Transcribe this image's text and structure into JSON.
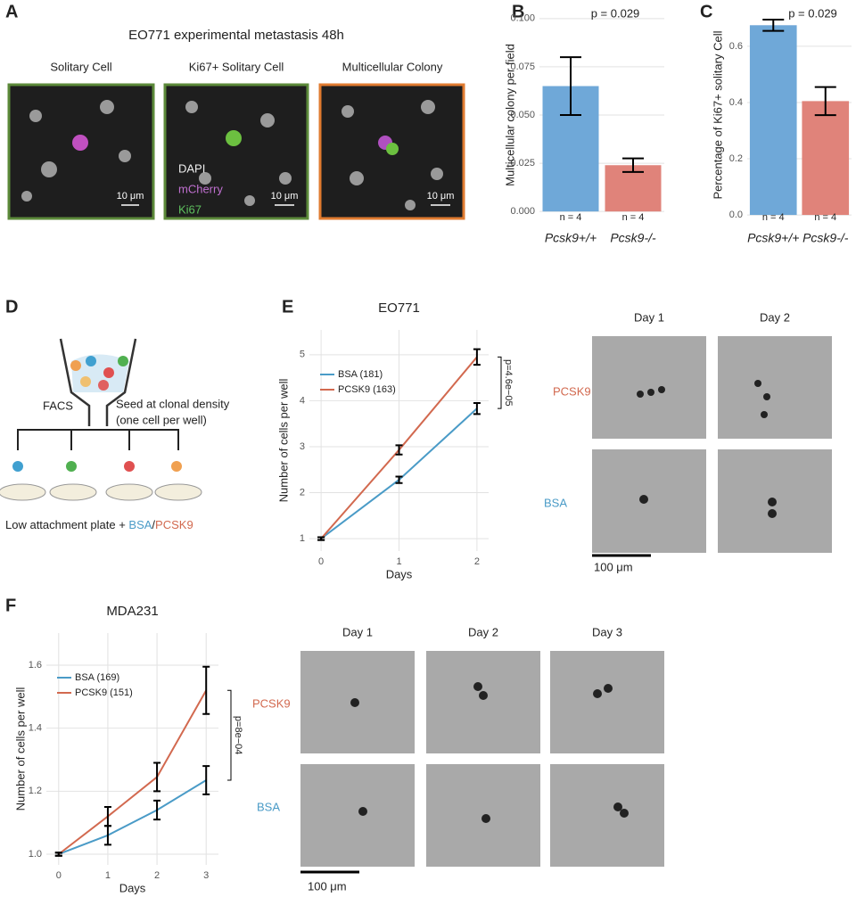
{
  "panels": {
    "A": {
      "letter": "A",
      "title": "EO771 experimental metastasis 48h",
      "images": [
        "Solitary Cell",
        "Ki67+ Solitary Cell",
        "Multicellular Colony"
      ],
      "stain_labels": [
        "DAPI",
        "mCherry",
        "Ki67"
      ],
      "scale_bars": [
        "10 μm",
        "10 μm",
        "10 μm"
      ]
    },
    "D": {
      "letter": "D",
      "sort": "FACS",
      "seed": "Seed at clonal density",
      "seed_note": "(one cell per well)",
      "plate": "Low attachment plate +",
      "bsa": "BSA",
      "slash": "/",
      "pcsk9": "PCSK9"
    },
    "E_images": {
      "days": [
        "Day 1",
        "Day 2"
      ],
      "rows": [
        "PCSK9",
        "BSA"
      ],
      "scale_bar": "100 μm"
    },
    "F_images": {
      "days": [
        "Day 1",
        "Day 2",
        "Day 3"
      ],
      "rows": [
        "PCSK9",
        "BSA"
      ],
      "scale_bar": "100 μm"
    }
  },
  "chart_data": [
    {
      "panel": "B",
      "type": "bar",
      "categories": [
        "Pcsk9+/+",
        "Pcsk9-/-"
      ],
      "values": [
        0.065,
        0.024
      ],
      "errors": [
        0.015,
        0.0035
      ],
      "colors": [
        "#6fa8d8",
        "#e0837a"
      ],
      "ylabel": "Multicellular colony per field",
      "ylim": [
        -0.005,
        0.105
      ],
      "yticks": [
        {
          "value": 0,
          "label": "0.000"
        },
        {
          "value": 0.025,
          "label": "0.025"
        },
        {
          "value": 0.05,
          "label": "0.050"
        },
        {
          "value": 0.075,
          "label": "0.075"
        },
        {
          "value": 0.1,
          "label": "0.100"
        }
      ],
      "annotations": [
        "p = 0.029",
        "n = 4",
        "n = 4"
      ],
      "grid": true
    },
    {
      "panel": "C",
      "type": "bar",
      "categories": [
        "Pcsk9+/+",
        "Pcsk9-/-"
      ],
      "values": [
        0.675,
        0.405
      ],
      "errors": [
        0.02,
        0.05
      ],
      "colors": [
        "#6fa8d8",
        "#e0837a"
      ],
      "ylabel": "Percentage of Ki67+ solitary Cell",
      "ylim": [
        -0.022,
        0.733
      ],
      "yticks": [
        {
          "value": 0,
          "label": "0.0"
        },
        {
          "value": 0.2,
          "label": "0.2"
        },
        {
          "value": 0.4,
          "label": "0.4"
        },
        {
          "value": 0.6,
          "label": "0.6"
        }
      ],
      "annotations": [
        "p = 0.029",
        "n = 4",
        "n = 4"
      ],
      "grid": true
    },
    {
      "panel": "E",
      "type": "line",
      "title": "EO771",
      "x": [
        0,
        1,
        2
      ],
      "series": [
        {
          "name": "BSA (181)",
          "color": "#4a9bc7",
          "values": [
            1,
            2.28,
            3.83
          ],
          "errors": [
            0.03,
            0.07,
            0.12
          ]
        },
        {
          "name": "PCSK9 (163)",
          "color": "#d2694f",
          "values": [
            1,
            2.93,
            4.95
          ],
          "errors": [
            0.03,
            0.1,
            0.17
          ]
        }
      ],
      "xlabel": "Days",
      "ylabel": "Number of cells per well",
      "xlim": [
        -0.15,
        2.15
      ],
      "xticks": [
        0,
        1,
        2
      ],
      "ylim": [
        0.73,
        5.54
      ],
      "yticks": [
        1,
        2,
        3,
        4,
        5
      ],
      "annotation": "p=4.6e−05",
      "legend": "upper left",
      "grid": true
    },
    {
      "panel": "F",
      "type": "line",
      "title": "MDA231",
      "x": [
        0,
        1,
        2,
        3
      ],
      "series": [
        {
          "name": "BSA (169)",
          "color": "#4a9bc7",
          "values": [
            1.0,
            1.06,
            1.14,
            1.235
          ],
          "errors": [
            0.005,
            0.03,
            0.03,
            0.045
          ]
        },
        {
          "name": "PCSK9 (151)",
          "color": "#d2694f",
          "values": [
            1.0,
            1.12,
            1.245,
            1.52
          ],
          "errors": [
            0.005,
            0.03,
            0.045,
            0.075
          ]
        }
      ],
      "xlabel": "Days",
      "ylabel": "Number of cells per well",
      "xlim": [
        -0.25,
        3.25
      ],
      "xticks": [
        0,
        1,
        2,
        3
      ],
      "ylim": [
        0.966,
        1.702
      ],
      "yticks": [
        {
          "value": 1.0,
          "label": "1.0"
        },
        {
          "value": 1.2,
          "label": "1.2"
        },
        {
          "value": 1.4,
          "label": "1.4"
        },
        {
          "value": 1.6,
          "label": "1.6"
        }
      ],
      "annotation": "p=8e−04",
      "legend": "upper left",
      "grid": true
    }
  ]
}
